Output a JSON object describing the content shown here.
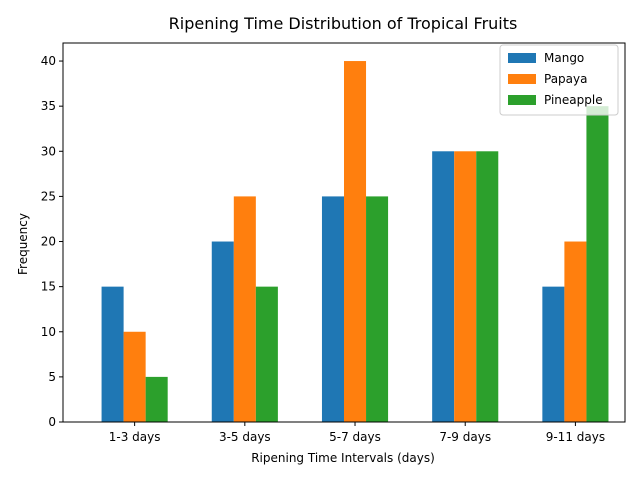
{
  "chart_data": {
    "type": "bar",
    "title": "Ripening Time Distribution of Tropical Fruits",
    "xlabel": "Ripening Time Intervals (days)",
    "ylabel": "Frequency",
    "categories": [
      "1-3 days",
      "3-5 days",
      "5-7 days",
      "7-9 days",
      "9-11 days"
    ],
    "series": [
      {
        "name": "Mango",
        "color": "#1f77b4",
        "values": [
          15,
          20,
          25,
          30,
          15
        ]
      },
      {
        "name": "Papaya",
        "color": "#ff7f0e",
        "values": [
          10,
          25,
          40,
          30,
          20
        ]
      },
      {
        "name": "Pineapple",
        "color": "#2ca02c",
        "values": [
          5,
          15,
          25,
          30,
          35
        ]
      }
    ],
    "ylim": [
      0,
      42
    ],
    "yticks": [
      0,
      5,
      10,
      15,
      20,
      25,
      30,
      35,
      40
    ],
    "grid": false,
    "legend_position": "top-right"
  }
}
